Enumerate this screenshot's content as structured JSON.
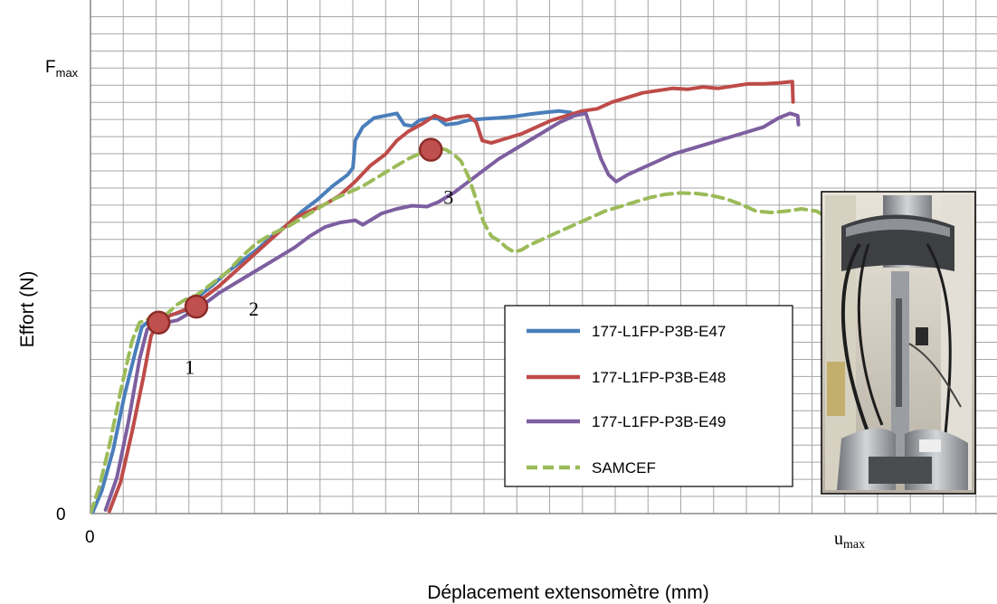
{
  "chart_data": {
    "type": "line",
    "xlabel": "Déplacement extensomètre (mm)",
    "ylabel": "Effort (N)",
    "x_ticks": {
      "zero": "0",
      "max": "u",
      "max_sub": "max"
    },
    "y_ticks": {
      "zero": "0",
      "max": "F",
      "max_sub": "max"
    },
    "xlim": [
      0,
      100
    ],
    "ylim": [
      0,
      100
    ],
    "grid": true,
    "legend_position": "bottom-center-right",
    "series": [
      {
        "name": "177-L1FP-P3B-E47",
        "color": "#4a7ebb",
        "style": "solid",
        "points": [
          [
            0.3,
            0.3
          ],
          [
            1.5,
            5
          ],
          [
            3,
            14
          ],
          [
            4.5,
            26
          ],
          [
            6,
            36
          ],
          [
            6.8,
            41
          ],
          [
            7.5,
            42
          ],
          [
            8.5,
            43
          ],
          [
            10,
            43.5
          ],
          [
            11.5,
            44
          ],
          [
            13,
            45
          ],
          [
            14.5,
            48
          ],
          [
            16,
            50
          ],
          [
            18,
            53
          ],
          [
            20,
            55.5
          ],
          [
            22,
            58
          ],
          [
            24,
            61
          ],
          [
            26,
            63.5
          ],
          [
            28,
            66.5
          ],
          [
            30,
            69
          ],
          [
            32,
            72
          ],
          [
            34,
            74.5
          ],
          [
            34.7,
            76
          ],
          [
            35,
            82
          ],
          [
            36,
            85
          ],
          [
            37.5,
            87
          ],
          [
            39,
            87.5
          ],
          [
            40.5,
            88
          ],
          [
            41.5,
            85.5
          ],
          [
            42.5,
            85.2
          ],
          [
            43.5,
            86.5
          ],
          [
            45,
            87
          ],
          [
            46,
            86.8
          ],
          [
            47,
            85.5
          ],
          [
            48.5,
            85.8
          ],
          [
            50,
            86.5
          ],
          [
            52,
            86.8
          ],
          [
            54,
            87
          ],
          [
            56,
            87.3
          ],
          [
            58,
            87.8
          ],
          [
            60,
            88.2
          ],
          [
            62,
            88.5
          ],
          [
            63.5,
            88.2
          ]
        ]
      },
      {
        "name": "177-L1FP-P3B-E48",
        "color": "#be4b48",
        "style": "solid",
        "points": [
          [
            2.5,
            0.5
          ],
          [
            4,
            7
          ],
          [
            5.5,
            18
          ],
          [
            7,
            30
          ],
          [
            8,
            39
          ],
          [
            9,
            42.5
          ],
          [
            10.5,
            43.5
          ],
          [
            12,
            44.5
          ],
          [
            13.5,
            45.5
          ],
          [
            15,
            47.5
          ],
          [
            17,
            50
          ],
          [
            19,
            53
          ],
          [
            21,
            56
          ],
          [
            23,
            59
          ],
          [
            25,
            62
          ],
          [
            27,
            65
          ],
          [
            29,
            66.5
          ],
          [
            31,
            68
          ],
          [
            33,
            70
          ],
          [
            35,
            73
          ],
          [
            37,
            76.5
          ],
          [
            39,
            79
          ],
          [
            40.5,
            82
          ],
          [
            42,
            84
          ],
          [
            44,
            85.8
          ],
          [
            45.5,
            87.5
          ],
          [
            47,
            86.5
          ],
          [
            48.5,
            87.2
          ],
          [
            50,
            87.5
          ],
          [
            51,
            86
          ],
          [
            51.8,
            82
          ],
          [
            53,
            81.5
          ],
          [
            55,
            82.5
          ],
          [
            57,
            83.5
          ],
          [
            59,
            85
          ],
          [
            61,
            86.5
          ],
          [
            63,
            87.5
          ],
          [
            65,
            88.5
          ],
          [
            67,
            89
          ],
          [
            69,
            90.5
          ],
          [
            71,
            91.5
          ],
          [
            73,
            92.5
          ],
          [
            75,
            93
          ],
          [
            77,
            93.5
          ],
          [
            79,
            93.3
          ],
          [
            81,
            93.8
          ],
          [
            83,
            93.5
          ],
          [
            85,
            94
          ],
          [
            87,
            94.5
          ],
          [
            89,
            94.5
          ],
          [
            91,
            94.7
          ],
          [
            92.8,
            95
          ],
          [
            92.9,
            90.5
          ]
        ]
      },
      {
        "name": "177-L1FP-P3B-E49",
        "color": "#7d5fa0",
        "style": "solid",
        "points": [
          [
            2,
            0.8
          ],
          [
            3.5,
            8
          ],
          [
            5,
            20
          ],
          [
            6.5,
            34
          ],
          [
            7.5,
            40.5
          ],
          [
            8.5,
            41.8
          ],
          [
            10,
            42
          ],
          [
            11.5,
            42.5
          ],
          [
            13,
            44
          ],
          [
            15,
            46
          ],
          [
            17,
            48.5
          ],
          [
            19,
            50.5
          ],
          [
            21,
            52.5
          ],
          [
            23,
            54.5
          ],
          [
            25,
            56.5
          ],
          [
            27,
            58.5
          ],
          [
            29,
            61
          ],
          [
            31,
            63
          ],
          [
            33,
            64
          ],
          [
            35,
            64.5
          ],
          [
            36,
            63.5
          ],
          [
            37,
            64.5
          ],
          [
            38.5,
            66
          ],
          [
            40.5,
            67
          ],
          [
            42.5,
            67.7
          ],
          [
            44.5,
            67.5
          ],
          [
            46,
            68.5
          ],
          [
            48,
            70.5
          ],
          [
            50,
            73
          ],
          [
            52,
            75.5
          ],
          [
            54,
            78
          ],
          [
            56,
            80
          ],
          [
            58,
            82
          ],
          [
            60,
            84
          ],
          [
            62,
            86
          ],
          [
            64,
            87.5
          ],
          [
            65.5,
            88
          ],
          [
            66.5,
            83
          ],
          [
            67.5,
            78
          ],
          [
            68.5,
            74.5
          ],
          [
            69.5,
            73
          ],
          [
            71,
            74.5
          ],
          [
            73,
            76
          ],
          [
            75,
            77.5
          ],
          [
            77,
            79
          ],
          [
            79,
            80
          ],
          [
            81,
            81
          ],
          [
            83,
            82
          ],
          [
            85,
            83
          ],
          [
            87,
            84
          ],
          [
            89,
            85
          ],
          [
            91,
            87
          ],
          [
            92.5,
            88
          ],
          [
            93.5,
            87.5
          ],
          [
            93.6,
            85.5
          ]
        ]
      },
      {
        "name": "SAMCEF",
        "color": "#9bbb59",
        "style": "dashed",
        "points": [
          [
            0,
            0
          ],
          [
            1.2,
            6
          ],
          [
            2.5,
            15
          ],
          [
            4,
            27
          ],
          [
            5.5,
            38
          ],
          [
            6.5,
            42
          ],
          [
            8,
            43
          ],
          [
            10,
            43.8
          ],
          [
            11.5,
            46
          ],
          [
            12.5,
            47
          ],
          [
            14,
            48
          ],
          [
            16,
            50.5
          ],
          [
            18,
            53
          ],
          [
            20,
            56.5
          ],
          [
            22,
            59.5
          ],
          [
            24,
            61.5
          ],
          [
            26,
            63
          ],
          [
            28,
            65
          ],
          [
            30,
            67
          ],
          [
            32,
            69
          ],
          [
            34,
            70.5
          ],
          [
            36,
            72
          ],
          [
            38,
            74
          ],
          [
            40,
            76
          ],
          [
            42,
            78
          ],
          [
            44,
            79.5
          ],
          [
            45.5,
            80.5
          ],
          [
            47,
            80
          ],
          [
            48,
            79
          ],
          [
            49,
            77.5
          ],
          [
            50,
            74
          ],
          [
            51,
            69
          ],
          [
            52,
            64
          ],
          [
            53,
            61
          ],
          [
            54,
            60
          ],
          [
            55,
            58.5
          ],
          [
            56,
            57.5
          ],
          [
            57,
            58
          ],
          [
            58,
            59
          ],
          [
            60,
            60.5
          ],
          [
            62,
            62
          ],
          [
            64,
            63.5
          ],
          [
            66,
            65
          ],
          [
            68,
            66.5
          ],
          [
            70,
            67.5
          ],
          [
            72,
            68.5
          ],
          [
            74,
            69.5
          ],
          [
            76,
            70.2
          ],
          [
            78,
            70.5
          ],
          [
            80,
            70.4
          ],
          [
            82,
            70
          ],
          [
            84,
            69.2
          ],
          [
            86,
            68
          ],
          [
            88,
            66.5
          ],
          [
            90,
            66.2
          ],
          [
            92,
            66.5
          ],
          [
            94,
            67
          ],
          [
            96,
            66.5
          ],
          [
            97.5,
            65
          ],
          [
            98.5,
            64.5
          ],
          [
            99.5,
            64
          ]
        ]
      }
    ],
    "markers": [
      {
        "label": "1",
        "x": 9.0,
        "y": 42.0
      },
      {
        "label": "2",
        "x": 14.0,
        "y": 45.5
      },
      {
        "label": "3",
        "x": 45.0,
        "y": 80.0
      }
    ],
    "marker_color": "#c0504d",
    "marker_stroke": "#8b2c2a"
  },
  "legend": {
    "items": [
      {
        "label": "177-L1FP-P3B-E47",
        "color": "#4a7ebb",
        "dashed": false
      },
      {
        "label": "177-L1FP-P3B-E48",
        "color": "#be4b48",
        "dashed": false
      },
      {
        "label": "177-L1FP-P3B-E49",
        "color": "#7d5fa0",
        "dashed": false
      },
      {
        "label": "SAMCEF",
        "color": "#9bbb59",
        "dashed": true
      }
    ]
  },
  "photo": {
    "icon": "test-machine-photo"
  }
}
